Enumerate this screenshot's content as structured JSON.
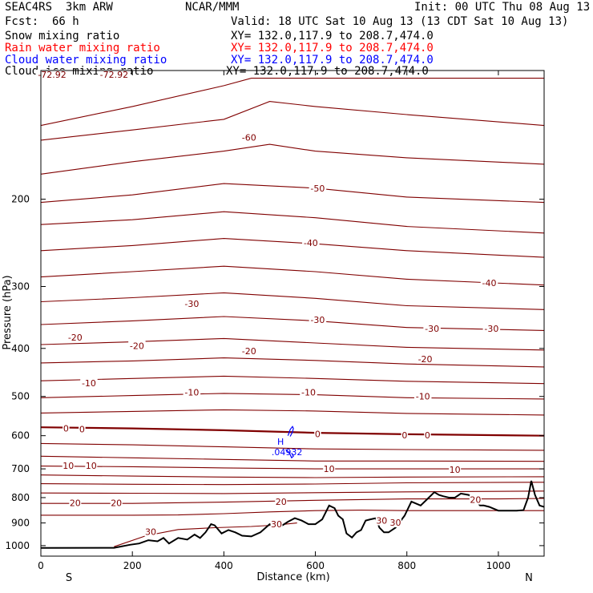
{
  "header": {
    "model": "SEAC4RS  3km ARW",
    "org": "NCAR/MMM",
    "init": "Init: 00 UTC Thu 08 Aug 13",
    "fcst_label": "Fcst:",
    "fcst_value": "66 h",
    "valid": "Valid: 18 UTC Sat 10 Aug 13 (13 CDT Sat 10 Aug 13)",
    "fields": [
      {
        "label": "Snow mixing ratio",
        "xy": "XY= 132.0,117.9 to 208.7,474.0",
        "color": "#000000"
      },
      {
        "label": "Rain water mixing ratio",
        "xy": "XY= 132.0,117.9 to 208.7,474.0",
        "color": "#ff0000"
      },
      {
        "label": "Cloud water mixing ratio",
        "xy": "XY= 132.0,117.9 to 208.7,474.0",
        "color": "#0000ff"
      },
      {
        "label": "Cloud ice mixing ratio",
        "xy": "XY= 132.0,117.9 to 208.7,474.0",
        "color": "#000000"
      }
    ]
  },
  "chart_data": {
    "type": "line",
    "xlabel": "Distance (km)",
    "ylabel": "Pressure (hPa)",
    "xlim": [
      0,
      1100
    ],
    "ylim": [
      1050,
      110
    ],
    "y_scale": "log",
    "x_ticks": [
      0,
      200,
      400,
      600,
      800,
      1000
    ],
    "y_ticks": [
      200,
      300,
      400,
      500,
      600,
      700,
      800,
      900,
      1000
    ],
    "direction_labels": {
      "left": "S",
      "right": "N"
    },
    "colors": {
      "isotherm": "#800000",
      "terrain": "#000000",
      "cloud_water": "#0000ff"
    },
    "isotherm_labels": [
      {
        "x": 0,
        "p": 112,
        "label": "-72.92"
      },
      {
        "x": 160,
        "p": 112,
        "label": "-72.92"
      },
      {
        "x": 455,
        "p": 150,
        "label": "-60"
      },
      {
        "x": 605,
        "p": 190,
        "label": "-50"
      },
      {
        "x": 590,
        "p": 245,
        "label": "-40"
      },
      {
        "x": 980,
        "p": 295,
        "label": "-40"
      },
      {
        "x": 330,
        "p": 325,
        "label": "-30"
      },
      {
        "x": 605,
        "p": 350,
        "label": "-30"
      },
      {
        "x": 855,
        "p": 365,
        "label": "-30"
      },
      {
        "x": 985,
        "p": 365,
        "label": "-30"
      },
      {
        "x": 75,
        "p": 380,
        "label": "-20"
      },
      {
        "x": 210,
        "p": 395,
        "label": "-20"
      },
      {
        "x": 455,
        "p": 405,
        "label": "-20"
      },
      {
        "x": 840,
        "p": 420,
        "label": "-20"
      },
      {
        "x": 105,
        "p": 470,
        "label": "-10"
      },
      {
        "x": 330,
        "p": 490,
        "label": "-10"
      },
      {
        "x": 585,
        "p": 490,
        "label": "-10"
      },
      {
        "x": 835,
        "p": 500,
        "label": "-10"
      },
      {
        "x": 55,
        "p": 580,
        "label": "0"
      },
      {
        "x": 90,
        "p": 582,
        "label": "0"
      },
      {
        "x": 605,
        "p": 595,
        "label": "0"
      },
      {
        "x": 795,
        "p": 598,
        "label": "0"
      },
      {
        "x": 845,
        "p": 598,
        "label": "0"
      },
      {
        "x": 60,
        "p": 690,
        "label": "10"
      },
      {
        "x": 110,
        "p": 690,
        "label": "10"
      },
      {
        "x": 630,
        "p": 700,
        "label": "10"
      },
      {
        "x": 905,
        "p": 702,
        "label": "10"
      },
      {
        "x": 75,
        "p": 820,
        "label": "20"
      },
      {
        "x": 165,
        "p": 820,
        "label": "20"
      },
      {
        "x": 525,
        "p": 815,
        "label": "20"
      },
      {
        "x": 950,
        "p": 808,
        "label": "20"
      },
      {
        "x": 240,
        "p": 937,
        "label": "30"
      },
      {
        "x": 515,
        "p": 905,
        "label": "30"
      },
      {
        "x": 745,
        "p": 890,
        "label": "30"
      },
      {
        "x": 775,
        "p": 898,
        "label": "30"
      }
    ],
    "isotherms": [
      {
        "x": [
          0,
          200,
          400,
          460,
          600,
          800,
          1100
        ],
        "p": [
          142,
          130,
          118,
          114,
          114,
          114,
          114
        ]
      },
      {
        "x": [
          0,
          200,
          400,
          500,
          600,
          800,
          1100
        ],
        "p": [
          152,
          145,
          138,
          127,
          130,
          135,
          142
        ]
      },
      {
        "x": [
          0,
          200,
          400,
          500,
          600,
          800,
          1100
        ],
        "p": [
          178,
          168,
          160,
          155,
          160,
          165,
          170
        ]
      },
      {
        "x": [
          0,
          200,
          400,
          600,
          800,
          1100
        ],
        "p": [
          203,
          196,
          186,
          190,
          198,
          203
        ]
      },
      {
        "x": [
          0,
          200,
          400,
          600,
          800,
          1100
        ],
        "p": [
          225,
          220,
          212,
          218,
          227,
          234
        ]
      },
      {
        "x": [
          0,
          200,
          400,
          600,
          800,
          1100
        ],
        "p": [
          254,
          248,
          240,
          246,
          254,
          262
        ]
      },
      {
        "x": [
          0,
          200,
          400,
          600,
          800,
          1100
        ],
        "p": [
          287,
          280,
          273,
          280,
          290,
          298
        ]
      },
      {
        "x": [
          0,
          200,
          400,
          600,
          800,
          1100
        ],
        "p": [
          322,
          316,
          309,
          317,
          328,
          334
        ]
      },
      {
        "x": [
          0,
          200,
          400,
          600,
          800,
          1100
        ],
        "p": [
          358,
          352,
          345,
          352,
          363,
          368
        ]
      },
      {
        "x": [
          0,
          200,
          400,
          600,
          800,
          1100
        ],
        "p": [
          393,
          388,
          382,
          390,
          398,
          403
        ]
      },
      {
        "x": [
          0,
          200,
          400,
          600,
          800,
          1100
        ],
        "p": [
          428,
          424,
          418,
          423,
          430,
          436
        ]
      },
      {
        "x": [
          0,
          200,
          400,
          600,
          800,
          1100
        ],
        "p": [
          465,
          460,
          455,
          460,
          466,
          471
        ]
      },
      {
        "x": [
          0,
          200,
          400,
          600,
          800,
          1100
        ],
        "p": [
          503,
          498,
          493,
          496,
          503,
          506
        ]
      },
      {
        "x": [
          0,
          200,
          400,
          600,
          800,
          1100
        ],
        "p": [
          540,
          536,
          532,
          535,
          541,
          545
        ]
      },
      {
        "x": [
          0,
          200,
          400,
          600,
          800,
          1100
        ],
        "p": [
          577,
          580,
          585,
          592,
          596,
          600
        ],
        "bold": true
      },
      {
        "x": [
          0,
          200,
          400,
          600,
          800,
          1100
        ],
        "p": [
          622,
          626,
          632,
          638,
          640,
          642
        ]
      },
      {
        "x": [
          0,
          200,
          400,
          600,
          800,
          1100
        ],
        "p": [
          660,
          665,
          670,
          675,
          675,
          676
        ]
      },
      {
        "x": [
          0,
          200,
          400,
          600,
          800,
          1100
        ],
        "p": [
          691,
          693,
          697,
          700,
          700,
          700
        ]
      },
      {
        "x": [
          0,
          200,
          400,
          600,
          800,
          1100
        ],
        "p": [
          720,
          724,
          727,
          729,
          727,
          726
        ]
      },
      {
        "x": [
          0,
          200,
          400,
          600,
          800,
          1100
        ],
        "p": [
          750,
          752,
          753,
          751,
          747,
          745
        ]
      },
      {
        "x": [
          0,
          200,
          400,
          600,
          800,
          1100
        ],
        "p": [
          783,
          784,
          785,
          782,
          779,
          776
        ]
      },
      {
        "x": [
          0,
          200,
          400,
          600,
          800,
          1000,
          1100
        ],
        "p": [
          822,
          822,
          817,
          810,
          805,
          805,
          803
        ]
      },
      {
        "x": [
          0,
          200,
          300,
          400,
          500,
          600,
          700,
          800,
          1100
        ],
        "p": [
          868,
          868,
          867,
          862,
          855,
          850,
          848,
          850,
          850
        ]
      },
      {
        "x": [
          160,
          230,
          300,
          380,
          460,
          520,
          560
        ],
        "p": [
          1005,
          955,
          928,
          920,
          915,
          908,
          900
        ]
      }
    ],
    "terrain": {
      "x": [
        0,
        160,
        175,
        195,
        215,
        235,
        255,
        268,
        280,
        300,
        320,
        336,
        348,
        360,
        372,
        380,
        395,
        410,
        425,
        440,
        460,
        480,
        500,
        520,
        540,
        555,
        570,
        585,
        600,
        615,
        630,
        642,
        650,
        660,
        668,
        680,
        690,
        700,
        710,
        720,
        732,
        740,
        750,
        760,
        775,
        795,
        810,
        830,
        848,
        860,
        870,
        880,
        892,
        905,
        918,
        935,
        945,
        952,
        960,
        968,
        980,
        1000,
        1020,
        1040,
        1055,
        1065,
        1072,
        1080,
        1090,
        1100
      ],
      "p": [
        1011,
        1010,
        1004,
        996,
        990,
        975,
        980,
        965,
        990,
        965,
        972,
        950,
        965,
        940,
        905,
        910,
        945,
        930,
        940,
        955,
        958,
        940,
        905,
        920,
        895,
        880,
        890,
        905,
        905,
        885,
        830,
        840,
        870,
        885,
        945,
        963,
        940,
        930,
        890,
        885,
        880,
        920,
        940,
        940,
        920,
        870,
        815,
        830,
        800,
        780,
        790,
        795,
        800,
        800,
        785,
        790,
        800,
        815,
        830,
        830,
        835,
        850,
        850,
        850,
        848,
        800,
        740,
        790,
        830,
        835
      ]
    },
    "cloud_water": {
      "max_label": "H",
      "max_value": ".04932",
      "max_at": {
        "x": 545,
        "p": 598
      },
      "contours": [
        {
          "x": [
            540,
            542,
            545,
            550,
            552,
            550,
            547,
            545
          ],
          "p": [
            600,
            594,
            583,
            575,
            580,
            590,
            597,
            602
          ]
        },
        {
          "x": [
            535,
            540,
            545,
            548,
            552,
            548
          ],
          "p": [
            640,
            645,
            655,
            665,
            660,
            650
          ]
        }
      ]
    }
  }
}
